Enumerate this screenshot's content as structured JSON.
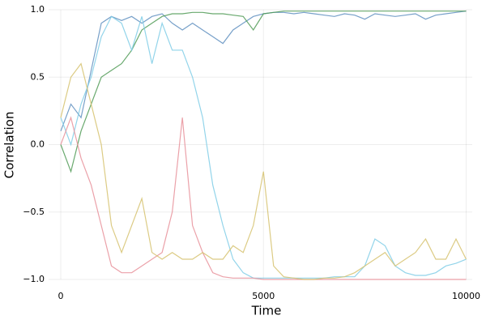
{
  "chart_data": {
    "type": "line",
    "x_label": "Time",
    "y_label": "Correlation",
    "x": [
      0,
      250,
      500,
      750,
      1000,
      1250,
      1500,
      1750,
      2000,
      2250,
      2500,
      2750,
      3000,
      3250,
      3500,
      3750,
      4000,
      4250,
      4500,
      4750,
      5000,
      5250,
      5500,
      5750,
      6000,
      6250,
      6500,
      6750,
      7000,
      7250,
      7500,
      7750,
      8000,
      8250,
      8500,
      8750,
      9000,
      9250,
      9500,
      9750,
      10000
    ],
    "series": [
      {
        "color": "#5f8fbf",
        "values": [
          0.1,
          0.3,
          0.2,
          0.55,
          0.9,
          0.95,
          0.92,
          0.95,
          0.9,
          0.95,
          0.97,
          0.9,
          0.85,
          0.9,
          0.85,
          0.8,
          0.75,
          0.85,
          0.9,
          0.95,
          0.97,
          0.98,
          0.98,
          0.97,
          0.98,
          0.97,
          0.96,
          0.95,
          0.97,
          0.96,
          0.93,
          0.97,
          0.96,
          0.95,
          0.96,
          0.97,
          0.93,
          0.96,
          0.97,
          0.98,
          0.99
        ]
      },
      {
        "color": "#4f9a55",
        "values": [
          0.0,
          -0.2,
          0.1,
          0.3,
          0.5,
          0.55,
          0.6,
          0.7,
          0.85,
          0.9,
          0.95,
          0.97,
          0.97,
          0.98,
          0.98,
          0.97,
          0.97,
          0.96,
          0.95,
          0.85,
          0.97,
          0.98,
          0.99,
          0.99,
          0.99,
          0.99,
          0.99,
          0.99,
          0.99,
          0.99,
          0.99,
          0.99,
          0.99,
          0.99,
          0.99,
          0.99,
          0.99,
          0.99,
          0.99,
          0.99,
          0.99
        ]
      },
      {
        "color": "#7fcde6",
        "values": [
          0.2,
          0.0,
          0.3,
          0.5,
          0.8,
          0.95,
          0.9,
          0.7,
          0.95,
          0.6,
          0.9,
          0.7,
          0.7,
          0.5,
          0.2,
          -0.3,
          -0.6,
          -0.85,
          -0.95,
          -0.99,
          -0.99,
          -0.99,
          -0.99,
          -0.99,
          -0.99,
          -0.99,
          -0.99,
          -0.98,
          -0.98,
          -0.98,
          -0.9,
          -0.7,
          -0.75,
          -0.9,
          -0.95,
          -0.97,
          -0.97,
          -0.95,
          -0.9,
          -0.88,
          -0.85
        ]
      },
      {
        "color": "#e8909a",
        "values": [
          0.0,
          0.2,
          -0.1,
          -0.3,
          -0.6,
          -0.9,
          -0.95,
          -0.95,
          -0.9,
          -0.85,
          -0.8,
          -0.5,
          0.2,
          -0.6,
          -0.8,
          -0.95,
          -0.98,
          -0.99,
          -0.99,
          -0.99,
          -1.0,
          -1.0,
          -1.0,
          -1.0,
          -1.0,
          -1.0,
          -1.0,
          -1.0,
          -1.0,
          -1.0,
          -1.0,
          -1.0,
          -1.0,
          -1.0,
          -1.0,
          -1.0,
          -1.0,
          -1.0,
          -1.0,
          -1.0,
          -1.0
        ]
      },
      {
        "color": "#d6c26e",
        "values": [
          0.2,
          0.5,
          0.6,
          0.3,
          0.0,
          -0.6,
          -0.8,
          -0.6,
          -0.4,
          -0.8,
          -0.85,
          -0.8,
          -0.85,
          -0.85,
          -0.8,
          -0.85,
          -0.85,
          -0.75,
          -0.8,
          -0.6,
          -0.2,
          -0.9,
          -0.98,
          -0.99,
          -1.0,
          -1.0,
          -0.99,
          -0.99,
          -0.98,
          -0.95,
          -0.9,
          -0.85,
          -0.8,
          -0.9,
          -0.85,
          -0.8,
          -0.7,
          -0.85,
          -0.85,
          -0.7,
          -0.85
        ]
      }
    ],
    "xlim": [
      -300,
      10150
    ],
    "ylim": [
      -1.0,
      1.0
    ],
    "xticks": [
      0,
      5000,
      10000
    ],
    "yticks": [
      {
        "value": -1,
        "label": "−1.0"
      },
      {
        "value": -0.5,
        "label": "−0.5"
      },
      {
        "value": 0,
        "label": "0.0"
      },
      0.5,
      {
        "value": 1,
        "label": "1.0"
      }
    ],
    "grid": true
  }
}
